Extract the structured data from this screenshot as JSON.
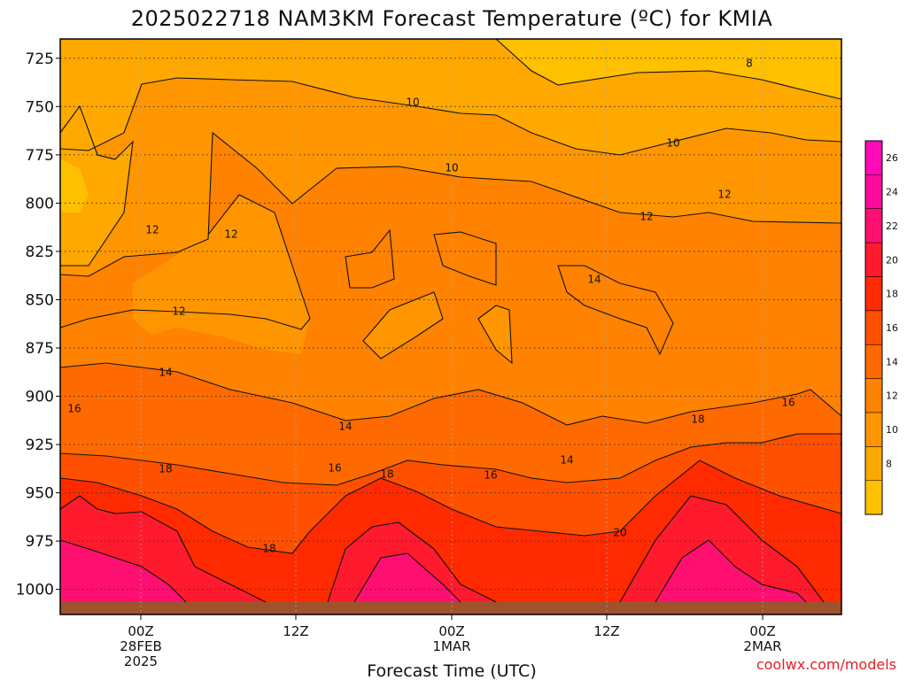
{
  "chart_data": {
    "type": "heatmap",
    "title": "2025022718 NAM3KM Forecast Temperature (ºC) for KMIA",
    "xlabel": "Forecast Time (UTC)",
    "ylabel": "",
    "credit": "coolwx.com/models",
    "y_axis": {
      "ticks": [
        725,
        750,
        775,
        800,
        825,
        850,
        875,
        900,
        925,
        950,
        975,
        1000
      ],
      "range": [
        715,
        1013
      ],
      "direction": "pressure increasing downward (hPa)"
    },
    "x_axis": {
      "ticks": [
        {
          "lines": [
            "00Z",
            "28FEB",
            "2025"
          ]
        },
        {
          "lines": [
            "12Z"
          ]
        },
        {
          "lines": [
            "00Z",
            "1MAR"
          ]
        },
        {
          "lines": [
            "12Z"
          ]
        },
        {
          "lines": [
            "00Z",
            "2MAR"
          ]
        }
      ]
    },
    "grid": true,
    "colorbar": {
      "levels": [
        8,
        10,
        12,
        14,
        16,
        18,
        20,
        22,
        24,
        26
      ],
      "colors": [
        "#ffc000",
        "#ffa800",
        "#ff9600",
        "#ff8200",
        "#ff6a00",
        "#ff5000",
        "#ff2a00",
        "#ff1a2e",
        "#ff1070",
        "#ff0a9e",
        "#ff0ab8"
      ],
      "placement": "right"
    },
    "ground_color": "#a0522d",
    "contour_labels": [
      "8",
      "10",
      "10",
      "10",
      "12",
      "12",
      "12",
      "12",
      "12",
      "14",
      "14",
      "14",
      "14",
      "16",
      "16",
      "16",
      "16",
      "18",
      "18",
      "18",
      "18",
      "20"
    ]
  }
}
